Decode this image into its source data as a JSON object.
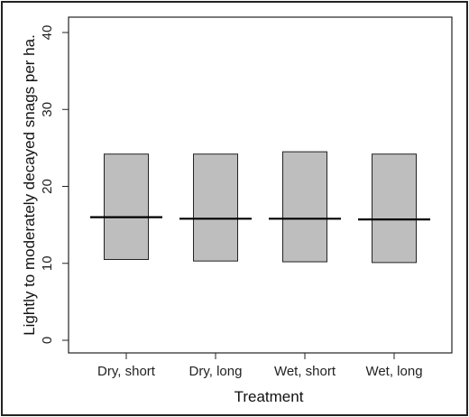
{
  "chart_data": {
    "type": "bar",
    "subtype": "floating-bar-with-center-line",
    "title": "",
    "xlabel": "Treatment",
    "ylabel": "Lightly to moderately decayed snags per ha.",
    "categories": [
      "Dry, short",
      "Dry, long",
      "Wet, short",
      "Wet, long"
    ],
    "series": [
      {
        "name": "",
        "role": "lower",
        "values": [
          10.5,
          10.3,
          10.2,
          10.1
        ]
      },
      {
        "name": "",
        "role": "upper",
        "values": [
          24.2,
          24.2,
          24.5,
          24.2
        ]
      },
      {
        "name": "",
        "role": "center",
        "values": [
          16.0,
          15.8,
          15.8,
          15.7
        ]
      }
    ],
    "ylim": [
      0,
      40
    ],
    "yticks": [
      0,
      10,
      20,
      30,
      40
    ],
    "grid": false,
    "legend": "none",
    "colors": {
      "bar_fill": "#bebebe",
      "bar_stroke": "#222222",
      "center_line": "#000000",
      "axis": "#222222"
    }
  }
}
